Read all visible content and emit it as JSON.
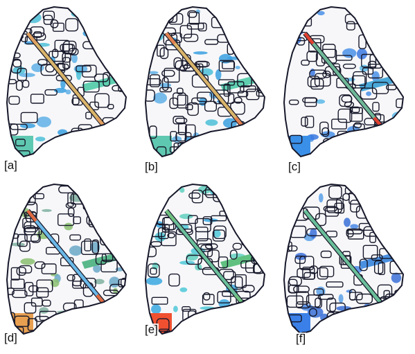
{
  "panels": [
    {
      "label": "[a]",
      "corridor": "#d9b46a",
      "corridor_tip": "#e0a060",
      "ponds": [
        "#5fb0e8",
        "#3aa0e0",
        "#4cc0d8"
      ],
      "band": "#5fcfb0",
      "corner": "#5fc8b0"
    },
    {
      "label": "[b]",
      "corridor": "#d9b46a",
      "corridor_tip": "#e08050",
      "ponds": [
        "#5fb0e8",
        "#3aa0e0",
        "#4cc0d8"
      ],
      "band": "#5fcfb0",
      "corner": "#5fc8b0"
    },
    {
      "label": "[c]",
      "corridor": "#6fb898",
      "corridor_tip": "#e04030",
      "ponds": [
        "#4a90e8",
        "#3a78e0",
        "#5ab8e8"
      ],
      "band": "#4aa8d8",
      "corner": "#3a90e8"
    },
    {
      "label": "[d]",
      "corridor": "#6ab8e8",
      "corridor_tip": "#e06a40",
      "ponds": [
        "#7fb0a0",
        "#6aa8c8",
        "#8ac070"
      ],
      "band": "#5ab88a",
      "corner": "#e8a050"
    },
    {
      "label": "[e]",
      "corridor": "#6abf9a",
      "corridor_tip": "#70c080",
      "ponds": [
        "#4fc8d8",
        "#3aa8e0",
        "#60d0c0"
      ],
      "band": "#60c080",
      "corner": "#f05030"
    },
    {
      "label": "[f]",
      "corridor": "#6abf9a",
      "corridor_tip": "#6abf9a",
      "ponds": [
        "#4a88e8",
        "#3a70d8",
        "#5aa0e8"
      ],
      "band": "#4a90e0",
      "corner": "#3a80e8"
    }
  ]
}
